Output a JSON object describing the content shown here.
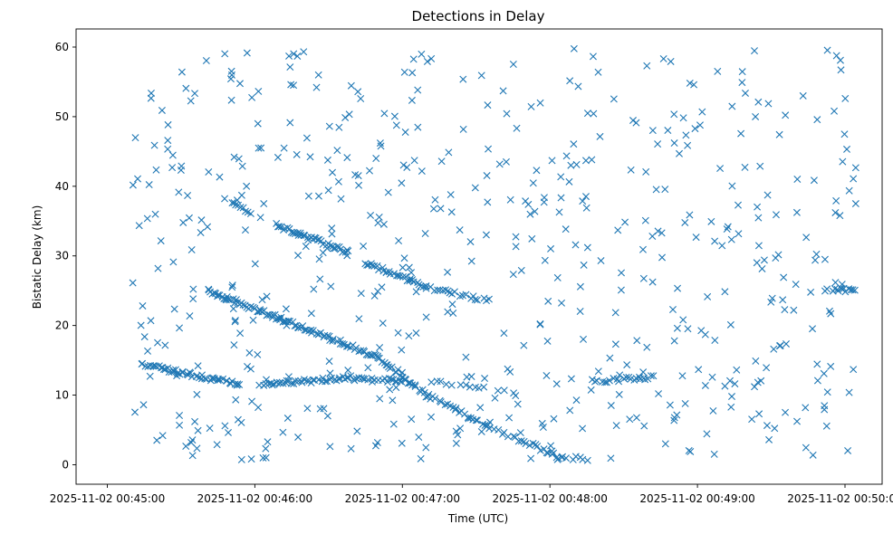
{
  "chart_data": {
    "type": "scatter",
    "title": "Detections in Delay",
    "xlabel": "Time (UTC)",
    "ylabel": "Bistatic Delay (km)",
    "x_unit": "seconds",
    "x_ticks": [
      {
        "t": 0,
        "label": "2025-11-02 00:45:00"
      },
      {
        "t": 60,
        "label": "2025-11-02 00:46:00"
      },
      {
        "t": 120,
        "label": "2025-11-02 00:47:00"
      },
      {
        "t": 180,
        "label": "2025-11-02 00:48:00"
      },
      {
        "t": 240,
        "label": "2025-11-02 00:49:00"
      },
      {
        "t": 300,
        "label": "2025-11-02 00:50:00"
      }
    ],
    "xlim": [
      -12.7,
      315.1
    ],
    "ylim": [
      -2.8,
      62.6
    ],
    "y_ticks": [
      0,
      10,
      20,
      30,
      40,
      50,
      60
    ],
    "grid": false,
    "marker": "x",
    "color": "#1f77b4",
    "tracks": [
      {
        "name": "",
        "start": [
          13,
          14.5
        ],
        "end": [
          54,
          11.5
        ],
        "n": 58
      },
      {
        "name": "",
        "start": [
          62,
          11.5
        ],
        "end": [
          100,
          12.5
        ],
        "n": 45
      },
      {
        "name": "",
        "start": [
          100,
          12.3
        ],
        "end": [
          122,
          12.0
        ],
        "n": 28
      },
      {
        "name": "",
        "start": [
          41,
          25
        ],
        "end": [
          70,
          21
        ],
        "n": 48
      },
      {
        "name": "",
        "start": [
          70,
          21
        ],
        "end": [
          110,
          15.5
        ],
        "n": 55
      },
      {
        "name": "",
        "start": [
          110,
          15.5
        ],
        "end": [
          130,
          10.0
        ],
        "n": 32
      },
      {
        "name": "",
        "start": [
          130,
          10.0
        ],
        "end": [
          155,
          5.5
        ],
        "n": 30
      },
      {
        "name": "",
        "start": [
          155,
          5.5
        ],
        "end": [
          185,
          1.0
        ],
        "n": 28
      },
      {
        "name": "",
        "start": [
          185,
          1.0
        ],
        "end": [
          195,
          0.8
        ],
        "n": 8
      },
      {
        "name": "",
        "start": [
          68,
          34.5
        ],
        "end": [
          98,
          30.5
        ],
        "n": 42
      },
      {
        "name": "",
        "start": [
          105,
          29
        ],
        "end": [
          130,
          25.5
        ],
        "n": 35
      },
      {
        "name": "",
        "start": [
          130,
          25.5
        ],
        "end": [
          155,
          23.5
        ],
        "n": 25
      },
      {
        "name": "",
        "start": [
          48,
          38.5
        ],
        "end": [
          58,
          36
        ],
        "n": 12
      },
      {
        "name": "",
        "start": [
          132,
          12
        ],
        "end": [
          165,
          10.5
        ],
        "n": 18
      },
      {
        "name": "",
        "start": [
          197,
          12
        ],
        "end": [
          222,
          12.5
        ],
        "n": 26
      },
      {
        "name": "",
        "start": [
          292,
          25.2
        ],
        "end": [
          304,
          25
        ],
        "n": 14
      }
    ],
    "scatter_region": {
      "x": [
        10,
        305
      ],
      "y": [
        0.5,
        60
      ]
    },
    "scatter_count": 560
  }
}
